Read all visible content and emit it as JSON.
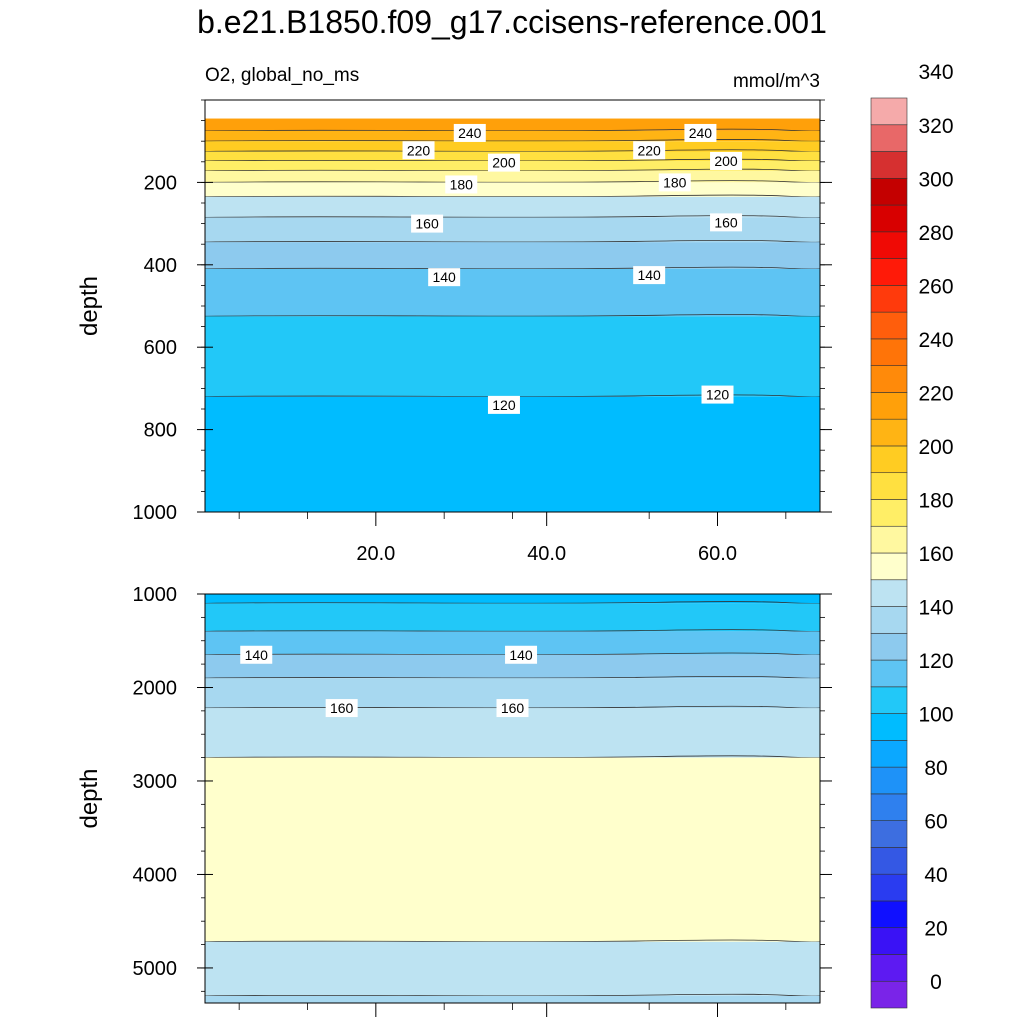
{
  "title": "b.e21.B1850.f09_g17.ccisens-reference.001",
  "left_string": "O2, global_no_ms",
  "right_string": "mmol/m^3",
  "colors": [
    "#7A24E8",
    "#5D1AF2",
    "#3A12F5",
    "#1010FF",
    "#2A3CF0",
    "#3458E4",
    "#3D6EE0",
    "#2F80EE",
    "#1E92F8",
    "#0BA8FF",
    "#00BCFF",
    "#22C8F8",
    "#5EC4F3",
    "#8DCAEE",
    "#A7D8F0",
    "#BDE3F2",
    "#FFFFCC",
    "#FFF8A0",
    "#FFEE66",
    "#FFE040",
    "#FFCC22",
    "#FFB414",
    "#FFA00A",
    "#FF8A0A",
    "#FF7408",
    "#FF5E0C",
    "#FF3A0C",
    "#FF1A08",
    "#F00A05",
    "#D80000",
    "#C40000",
    "#D63030",
    "#E86868",
    "#F5AAAA"
  ],
  "chart_data": [
    {
      "type": "contour",
      "name": "upper",
      "xlabel": "",
      "ylabel": "depth",
      "xlim": [
        0,
        72
      ],
      "ylim": [
        0,
        1000
      ],
      "x_reversed": false,
      "y_reversed": true,
      "x_ticks": [
        20,
        40,
        60
      ],
      "x_ticklabels": [
        "20.0",
        "40.0",
        "60.0"
      ],
      "y_ticks": [
        200,
        400,
        600,
        800,
        1000
      ],
      "y_ticklabels": [
        "200",
        "400",
        "600",
        "800",
        "1000"
      ],
      "top_depth": 45,
      "bands": [
        {
          "value": 244,
          "bottom": 75,
          "color_index": 22
        },
        {
          "value": 237,
          "bottom": 100,
          "color_index": 21
        },
        {
          "value": 225,
          "bottom": 125,
          "color_index": 20
        },
        {
          "value": 215,
          "bottom": 148,
          "color_index": 19
        },
        {
          "value": 205,
          "bottom": 172,
          "color_index": 18
        },
        {
          "value": 195,
          "bottom": 200,
          "color_index": 17
        },
        {
          "value": 185,
          "bottom": 235,
          "color_index": 16
        },
        {
          "value": 170,
          "bottom": 285,
          "color_index": 15
        },
        {
          "value": 162,
          "bottom": 345,
          "color_index": 14
        },
        {
          "value": 152,
          "bottom": 410,
          "color_index": 13
        },
        {
          "value": 142,
          "bottom": 525,
          "color_index": 12
        },
        {
          "value": 130,
          "bottom": 720,
          "color_index": 11
        },
        {
          "value": 115,
          "bottom": 1000,
          "color_index": 10
        }
      ],
      "contour_labels": [
        {
          "text": "240",
          "x": 31,
          "y": 80
        },
        {
          "text": "240",
          "x": 58,
          "y": 80
        },
        {
          "text": "220",
          "x": 25,
          "y": 122
        },
        {
          "text": "220",
          "x": 52,
          "y": 122
        },
        {
          "text": "200",
          "x": 35,
          "y": 152
        },
        {
          "text": "200",
          "x": 61,
          "y": 148
        },
        {
          "text": "180",
          "x": 30,
          "y": 205
        },
        {
          "text": "180",
          "x": 55,
          "y": 200
        },
        {
          "text": "160",
          "x": 26,
          "y": 300
        },
        {
          "text": "160",
          "x": 61,
          "y": 297
        },
        {
          "text": "140",
          "x": 28,
          "y": 430
        },
        {
          "text": "140",
          "x": 52,
          "y": 425
        },
        {
          "text": "120",
          "x": 35,
          "y": 740
        },
        {
          "text": "120",
          "x": 60,
          "y": 715
        }
      ]
    },
    {
      "type": "contour",
      "name": "lower",
      "xlabel": "",
      "ylabel": "depth",
      "xlim": [
        0,
        72
      ],
      "ylim": [
        1000,
        5375
      ],
      "x_reversed": false,
      "y_reversed": true,
      "x_ticks": [
        20,
        40,
        60
      ],
      "x_ticklabels": [],
      "y_ticks": [
        1000,
        2000,
        3000,
        4000,
        5000
      ],
      "y_ticklabels": [
        "1000",
        "2000",
        "3000",
        "4000",
        "5000"
      ],
      "top_depth": 1000,
      "bands": [
        {
          "value": 118,
          "bottom": 1100,
          "color_index": 10
        },
        {
          "value": 125,
          "bottom": 1400,
          "color_index": 11
        },
        {
          "value": 135,
          "bottom": 1650,
          "color_index": 12
        },
        {
          "value": 145,
          "bottom": 1900,
          "color_index": 13
        },
        {
          "value": 155,
          "bottom": 2220,
          "color_index": 14
        },
        {
          "value": 165,
          "bottom": 2750,
          "color_index": 15
        },
        {
          "value": 172,
          "bottom": 4720,
          "color_index": 16
        },
        {
          "value": 168,
          "bottom": 5300,
          "color_index": 15
        },
        {
          "value": 162,
          "bottom": 5375,
          "color_index": 14
        }
      ],
      "contour_labels": [
        {
          "text": "140",
          "x": 6,
          "y": 1650
        },
        {
          "text": "140",
          "x": 37,
          "y": 1650
        },
        {
          "text": "160",
          "x": 16,
          "y": 2220
        },
        {
          "text": "160",
          "x": 36,
          "y": 2220
        }
      ]
    }
  ],
  "colorbar": {
    "labels": [
      "340",
      "320",
      "300",
      "280",
      "260",
      "240",
      "220",
      "200",
      "180",
      "160",
      "140",
      "120",
      "100",
      "80",
      "60",
      "40",
      "20",
      "0"
    ]
  }
}
